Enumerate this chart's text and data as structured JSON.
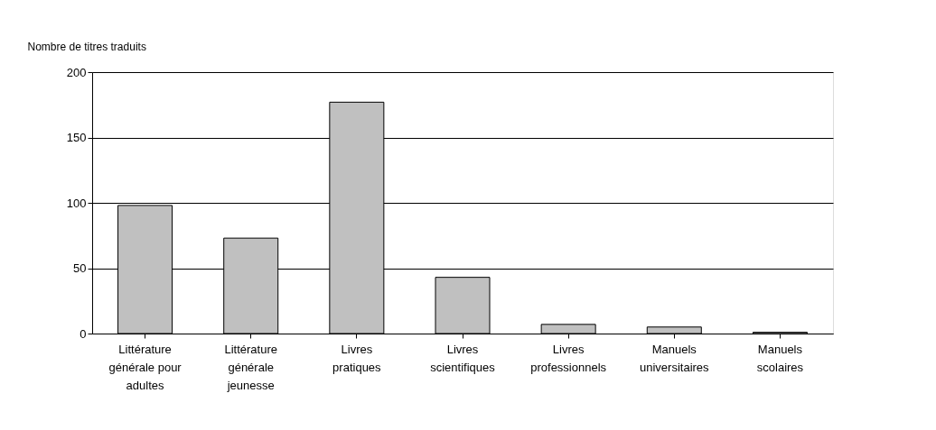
{
  "chart_data": {
    "type": "bar",
    "ylabel": "Nombre de titres traduits",
    "categories": [
      "Littérature générale pour adultes",
      "Littérature générale jeunesse",
      "Livres pratiques",
      "Livres scientifiques",
      "Livres professionnels",
      "Manuels universitaires",
      "Manuels scolaires"
    ],
    "values": [
      98,
      73,
      177,
      43,
      7,
      5,
      1
    ],
    "color": "#c0c0c0",
    "ylim": [
      0,
      200
    ],
    "yticks": [
      0,
      50,
      100,
      150,
      200
    ],
    "grid": "y"
  }
}
